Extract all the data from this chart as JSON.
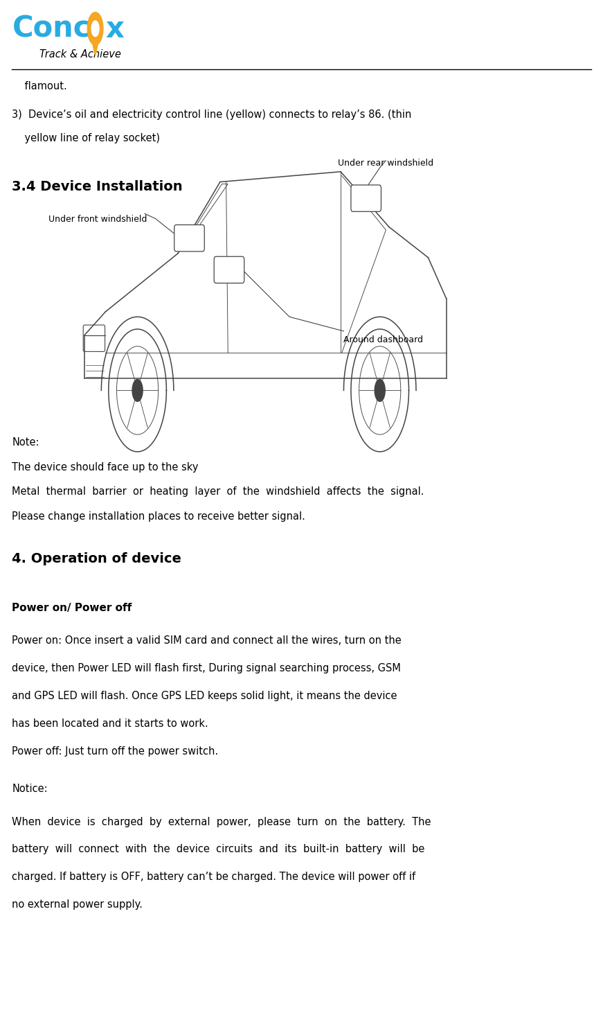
{
  "bg_color": "#ffffff",
  "fig_width": 8.71,
  "fig_height": 14.75,
  "dpi": 100,
  "logo_color": "#29abe2",
  "logo_yellow": "#f5a623",
  "logo_tagline": "Track & Achieve",
  "line1_text": "    flamout.",
  "line2_text": "3)  Device’s oil and electricity control line (yellow) connects to relay’s 86. (thin",
  "line3_text": "    yellow line of relay socket)",
  "section_title": "3.4 Device Installation",
  "note_line1": "Note:",
  "note_line2": "The device should face up to the sky",
  "note_line3": "Metal  thermal  barrier  or  heating  layer  of  the  windshield  affects  the  signal.",
  "note_line4": "Please change installation places to receive better signal.",
  "section4_title": "4. Operation of device",
  "power_subtitle": "Power on/ Power off",
  "power_lines": [
    "Power on: Once insert a valid SIM card and connect all the wires, turn on the",
    "device, then Power LED will flash first, During signal searching process, GSM",
    "and GPS LED will flash. Once GPS LED keeps solid light, it means the device",
    "has been located and it starts to work.",
    "Power off: Just turn off the power switch."
  ],
  "notice_label": "Notice:",
  "notice_lines": [
    "When  device  is  charged  by  external  power,  please  turn  on  the  battery.  The",
    "battery  will  connect  with  the  device  circuits  and  its  built-in  battery  will  be",
    "charged. If battery is OFF, battery can’t be charged. The device will power off if",
    "no external power supply."
  ],
  "car_label1": "Under rear windshield",
  "car_label2": "Under front windshield",
  "car_label3": "Around dashboard",
  "car_device1": "Device",
  "car_device2": "Device",
  "car_device3": "Device"
}
